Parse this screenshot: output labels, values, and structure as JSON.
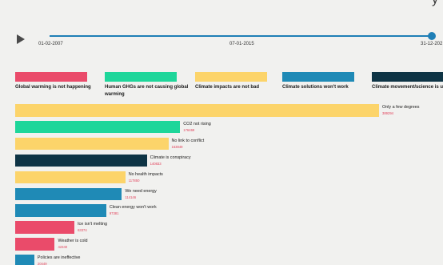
{
  "timeline": {
    "start_label": "01-02-2007",
    "mid_label": "07-01-2015",
    "end_label": "31-12-202",
    "position": 1.0
  },
  "legend": {
    "items": [
      {
        "label": "Global warming is not happening",
        "color": "#ea4b6a"
      },
      {
        "label": "Human GHGs are not causing global warming",
        "color": "#1ed69a"
      },
      {
        "label": "Climate impacts are not bad",
        "color": "#fcd46a"
      },
      {
        "label": "Climate solutions won't work",
        "color": "#1f8ab6"
      },
      {
        "label": "Climate movement/science is unreliable",
        "color": "#0e3445"
      }
    ]
  },
  "chart_data": {
    "type": "bar",
    "orientation": "horizontal",
    "categories": [
      "Only a few degrees",
      "CO2 not rising",
      "No link to conflict",
      "Climate is conspiracy",
      "No health impacts",
      "We need energy",
      "Clean energy won't work",
      "Ice isn't melting",
      "Weather is cold",
      "Policies are ineffective"
    ],
    "values": [
      389294,
      176469,
      163849,
      140833,
      117850,
      114146,
      97381,
      63374,
      42340,
      20449
    ],
    "value_labels": [
      "389294",
      "176469",
      "163849",
      "140833",
      "117850",
      "114146",
      "97381",
      "63374",
      "42340",
      "20449"
    ],
    "groups": [
      2,
      1,
      2,
      4,
      2,
      3,
      3,
      0,
      0,
      3
    ],
    "xlim": [
      0,
      389294
    ]
  }
}
